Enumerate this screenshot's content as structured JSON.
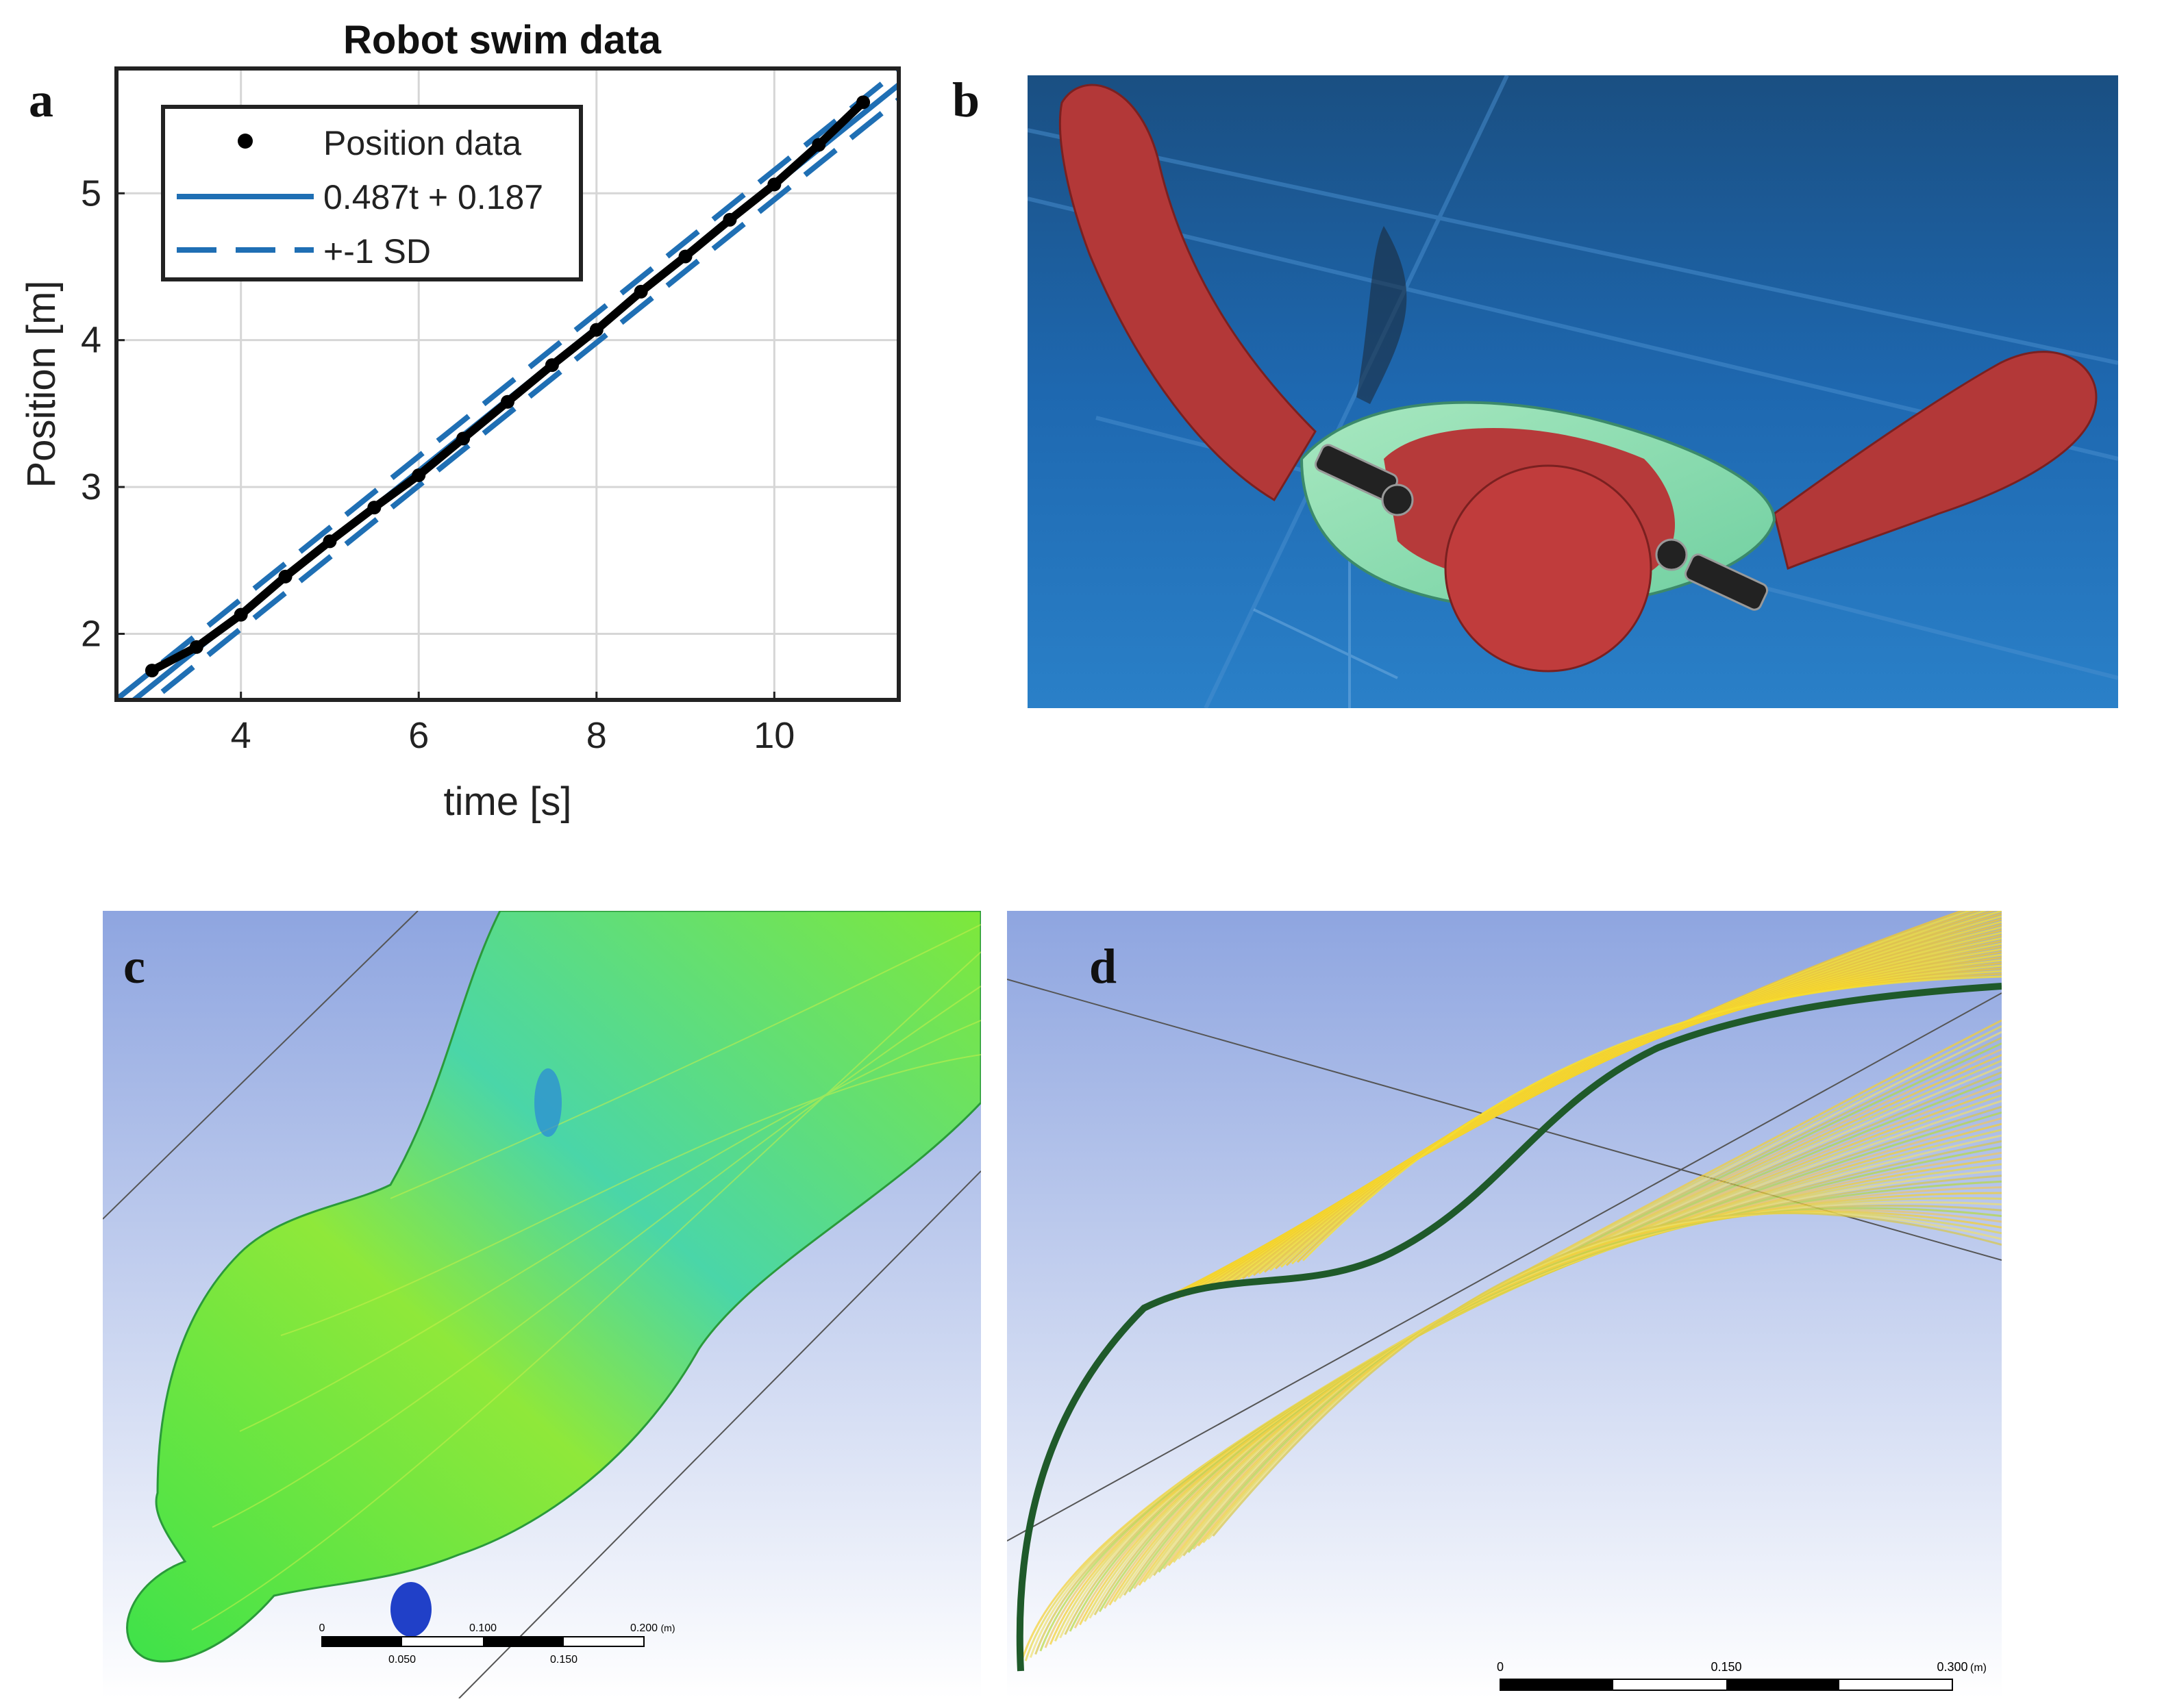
{
  "panels": {
    "a": "a",
    "b": "b",
    "c": "c",
    "d": "d"
  },
  "scale_c": {
    "top_ticks": [
      "0",
      "0.100",
      "0.200",
      "(m)"
    ],
    "bottom_ticks": [
      "0.050",
      "0.150"
    ]
  },
  "scale_d": {
    "ticks": [
      "0",
      "0.150",
      "0.300",
      "(m)"
    ]
  },
  "colors": {
    "fit": "#1f6fb4",
    "data": "#000000",
    "photo_water": "#1f5f9c",
    "robot_red": "#b23a3a",
    "cfd_bg_top": "#8ea5e0",
    "cfd_bg_bottom": "#ffffff",
    "cfd_green": "#5ee03a",
    "cfd_yellow": "#f0d23a"
  },
  "chart_data": {
    "type": "line",
    "title": "Robot swim data",
    "xlabel": "time [s]",
    "ylabel": "Position [m]",
    "xlim": [
      2.6,
      11.4
    ],
    "ylim": [
      1.55,
      5.85
    ],
    "xticks": [
      4,
      6,
      8,
      10
    ],
    "yticks": [
      2,
      3,
      4,
      5
    ],
    "grid": true,
    "legend_position": "top-left",
    "series": [
      {
        "name": "Position data",
        "style": "points",
        "x": [
          3.0,
          3.5,
          4.0,
          4.5,
          5.0,
          5.5,
          6.0,
          6.5,
          7.0,
          7.5,
          8.0,
          8.5,
          9.0,
          9.5,
          10.0,
          10.5,
          11.0
        ],
        "y": [
          1.75,
          1.91,
          2.13,
          2.39,
          2.63,
          2.86,
          3.08,
          3.33,
          3.58,
          3.83,
          4.07,
          4.33,
          4.57,
          4.82,
          5.06,
          5.33,
          5.62
        ]
      },
      {
        "name": "0.487t + 0.187",
        "style": "solid",
        "slope": 0.487,
        "intercept": 0.187
      },
      {
        "name": "+-1 SD",
        "style": "dashed",
        "offset": 0.1
      }
    ]
  }
}
